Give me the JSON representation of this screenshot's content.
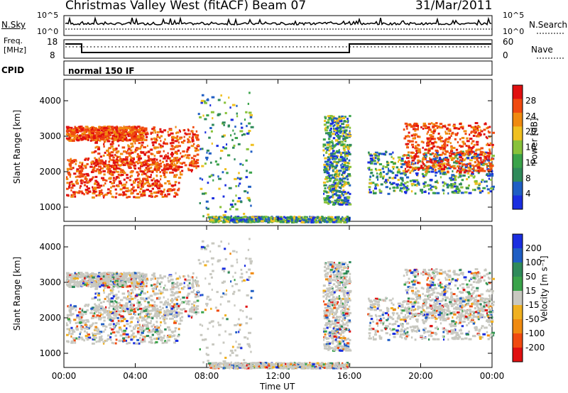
{
  "header": {
    "site": "Christmas Valley West (fitACF)",
    "beam": "Beam 07",
    "date": "31/Mar/2011"
  },
  "top_panel": {
    "left_label": "N.Sky",
    "left_ticks": [
      "10^5",
      "10^0"
    ],
    "right_ticks": [
      "10^5",
      "10^0"
    ],
    "right_label": "N.Search"
  },
  "freq_panel": {
    "left_label_1": "Freq.",
    "left_label_2": "[MHz]",
    "left_ticks": [
      "18",
      "8"
    ],
    "right_ticks": [
      "60",
      "0"
    ],
    "right_label": "Nave"
  },
  "cpid": {
    "label": "CPID",
    "mode": "normal 150 IF"
  },
  "colors": {
    "power": [
      "#1a2ee0",
      "#1f5ec4",
      "#2f8a5a",
      "#3aa34a",
      "#88c23a",
      "#f0c020",
      "#f08a10",
      "#f04a10",
      "#e01010"
    ],
    "velocity": [
      "#1a2ee0",
      "#1f5ec4",
      "#2f8a5a",
      "#3aa34a",
      "#c8c8c0",
      "#f0b020",
      "#f08a10",
      "#f04a10",
      "#e01010"
    ],
    "ground_scatter": "#c8c8c0"
  },
  "chart_data": [
    {
      "type": "heatmap",
      "name": "power",
      "ylabel": "Slant Range [km]",
      "yticks": [
        "1000",
        "2000",
        "3000",
        "4000"
      ],
      "ylim": [
        600,
        4600
      ],
      "colorbar_label": "Power [dB]",
      "colorbar_ticks": [
        "28",
        "24",
        "20",
        "16",
        "12",
        "8",
        "4"
      ]
    },
    {
      "type": "heatmap",
      "name": "velocity",
      "ylabel": "Slant Range [km]",
      "yticks": [
        "1000",
        "2000",
        "3000",
        "4000"
      ],
      "ylim": [
        600,
        4600
      ],
      "colorbar_label": "Velocity [m s⁻¹]",
      "colorbar_ticks": [
        "200",
        "100",
        "50",
        "15",
        "-15",
        "-50",
        "-100",
        "-200"
      ]
    }
  ],
  "x_axis": {
    "label": "Time UT",
    "ticks": [
      "00:00",
      "04:00",
      "08:00",
      "12:00",
      "16:00",
      "20:00",
      "00:00"
    ]
  }
}
